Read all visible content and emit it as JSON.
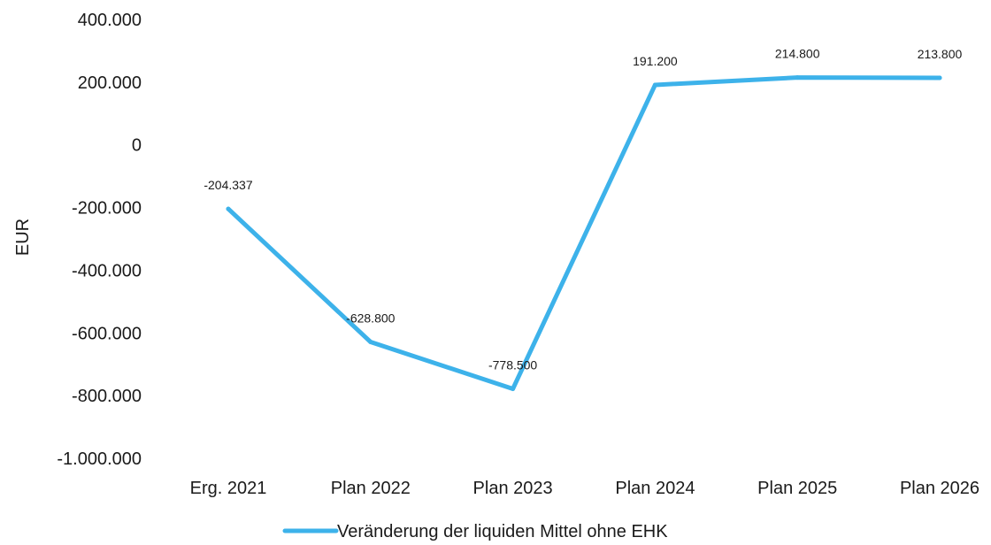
{
  "chart_data": {
    "type": "line",
    "categories": [
      "Erg. 2021",
      "Plan 2022",
      "Plan 2023",
      "Plan 2024",
      "Plan 2025",
      "Plan 2026"
    ],
    "series": [
      {
        "name": "Veränderung der liquiden Mittel ohne EHK",
        "values": [
          -204337,
          -628800,
          -778500,
          191200,
          214800,
          213800
        ],
        "labels": [
          "-204.337",
          "-628.800",
          "-778.500",
          "191.200",
          "214.800",
          "213.800"
        ],
        "color": "#3db2ea"
      }
    ],
    "y_ticks": [
      400000,
      200000,
      0,
      -200000,
      -400000,
      -600000,
      -800000,
      -1000000
    ],
    "y_tick_labels": [
      "400.000",
      "200.000",
      "0",
      "-200.000",
      "-400.000",
      "-600.000",
      "-800.000",
      "-1.000.000"
    ],
    "ylabel": "EUR",
    "xlabel": "",
    "ylim": [
      -1000000,
      400000
    ],
    "grid": false,
    "legend_position": "bottom"
  }
}
